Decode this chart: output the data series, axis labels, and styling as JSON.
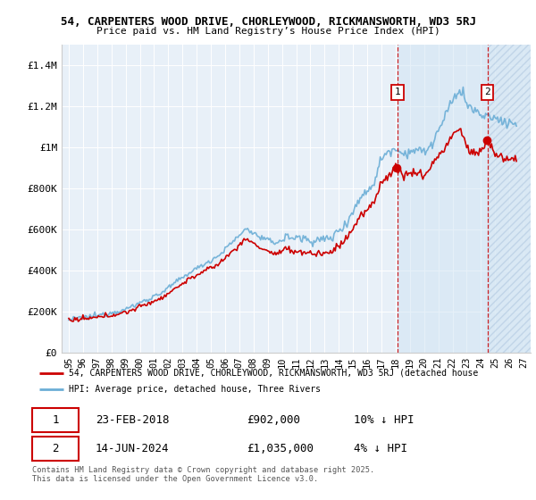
{
  "title_line1": "54, CARPENTERS WOOD DRIVE, CHORLEYWOOD, RICKMANSWORTH, WD3 5RJ",
  "title_line2": "Price paid vs. HM Land Registry’s House Price Index (HPI)",
  "ylim": [
    0,
    1500000
  ],
  "yticks": [
    0,
    200000,
    400000,
    600000,
    800000,
    1000000,
    1200000,
    1400000
  ],
  "ytick_labels": [
    "£0",
    "£200K",
    "£400K",
    "£600K",
    "£800K",
    "£1M",
    "£1.2M",
    "£1.4M"
  ],
  "hpi_color": "#6baed6",
  "price_color": "#cc0000",
  "t1": 2018.125,
  "t2": 2024.458,
  "marker1_price": 902000,
  "marker1_label": "23-FEB-2018",
  "marker1_value_str": "£902,000",
  "marker1_hpi_str": "10% ↓ HPI",
  "marker2_price": 1035000,
  "marker2_label": "14-JUN-2024",
  "marker2_value_str": "£1,035,000",
  "marker2_hpi_str": "4% ↓ HPI",
  "legend_line1": "54, CARPENTERS WOOD DRIVE, CHORLEYWOOD, RICKMANSWORTH, WD3 5RJ (detached house",
  "legend_line2": "HPI: Average price, detached house, Three Rivers",
  "footnote": "Contains HM Land Registry data © Crown copyright and database right 2025.\nThis data is licensed under the Open Government Licence v3.0.",
  "bg_color": "#ffffff",
  "plot_bg_color": "#e8f0f8",
  "xlim_start": 1994.5,
  "xlim_end": 2027.5
}
